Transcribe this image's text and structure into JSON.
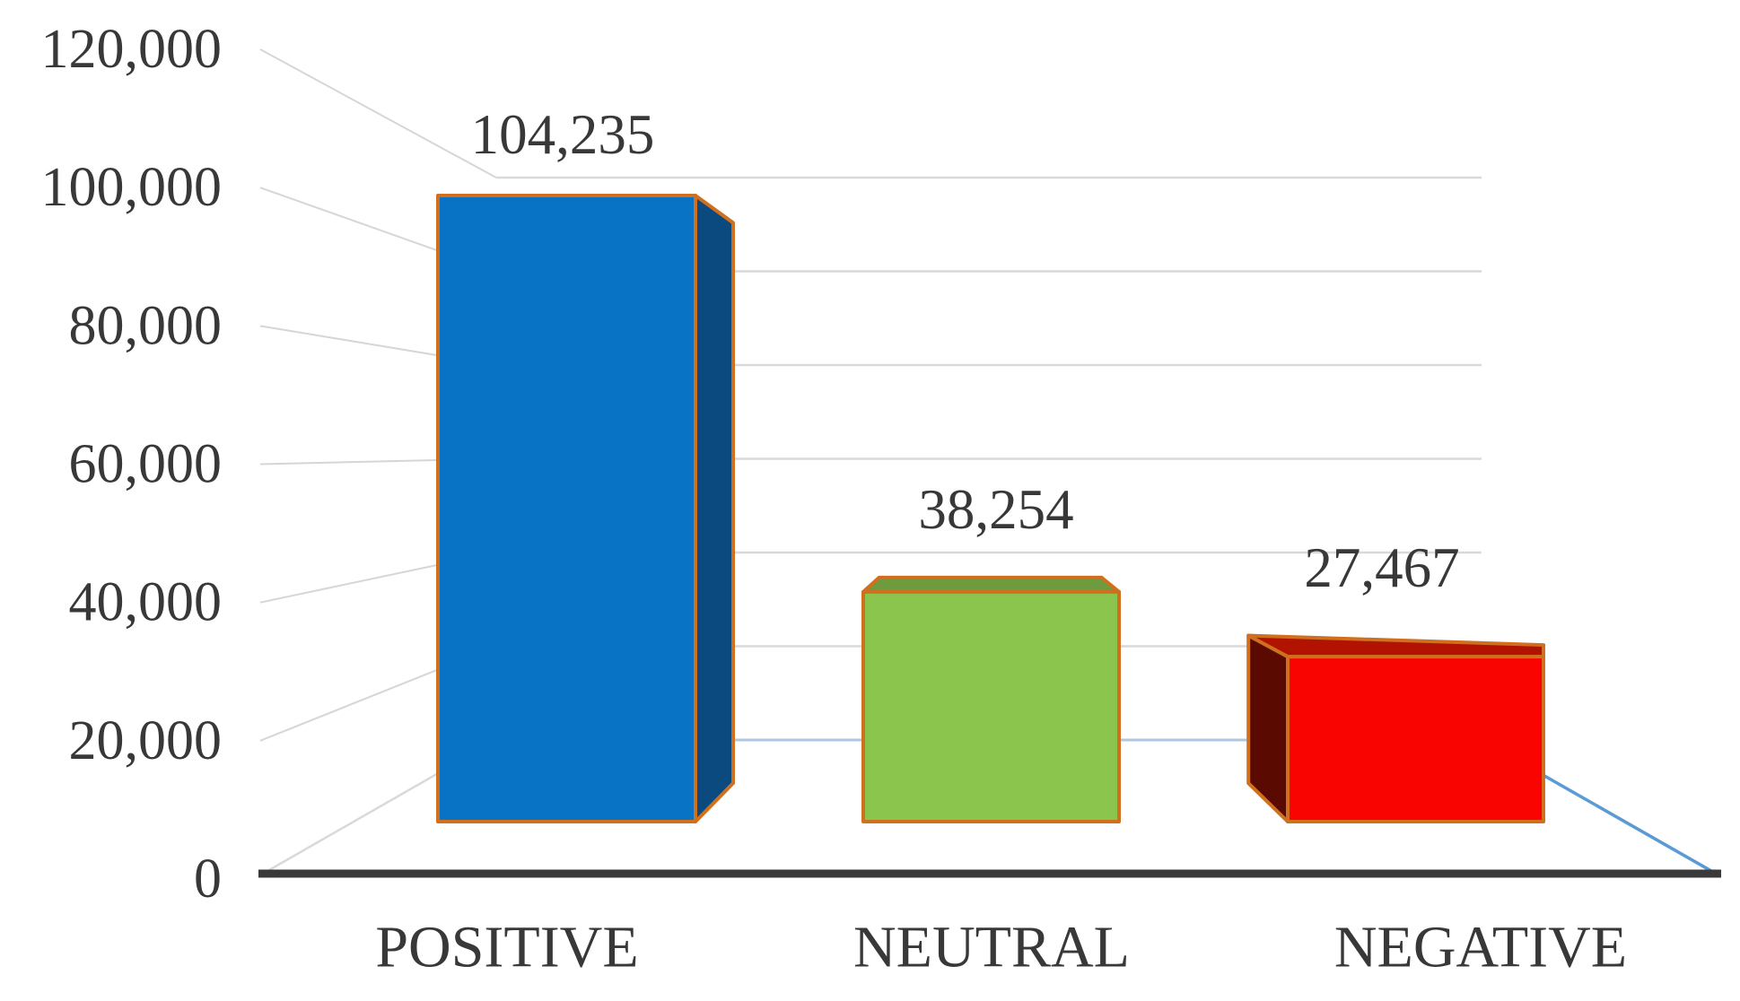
{
  "chart_data": {
    "type": "bar",
    "view": "3d-perspective-columns",
    "title": "",
    "categories": [
      "POSITIVE",
      "NEUTRAL",
      "NEGATIVE"
    ],
    "values": [
      104235,
      38254,
      27467
    ],
    "value_labels": [
      "104,235",
      "38,254",
      "27,467"
    ],
    "y_ticks": [
      0,
      20000,
      40000,
      60000,
      80000,
      100000,
      120000
    ],
    "y_tick_labels": [
      "0",
      "20,000",
      "40,000",
      "60,000",
      "80,000",
      "100,000",
      "120,000"
    ],
    "ylim": [
      0,
      120000
    ],
    "grid": true,
    "legend": "none",
    "xlabel": "",
    "ylabel": "",
    "bar_colors": [
      {
        "name": "positive-blue",
        "front": "#0873C4",
        "side": "#0B4A7E",
        "top": "#0B4A7E"
      },
      {
        "name": "neutral-green",
        "front": "#8BC54D",
        "side": "#6D9B3E",
        "top": "#6D9B3E"
      },
      {
        "name": "negative-red",
        "front": "#FA0401",
        "side": "#5A0A00",
        "top": "#B11300"
      }
    ],
    "outline_color": "#D06F1E",
    "axis_line_color": "#3A3A3A",
    "gridline_color": "#D9D9D9",
    "connector_color": "#D6D6D6",
    "floor_back_edge_color": "#AFC7E2",
    "floor_right_edge_color": "#5B9BD5",
    "text_color": "#383838"
  }
}
